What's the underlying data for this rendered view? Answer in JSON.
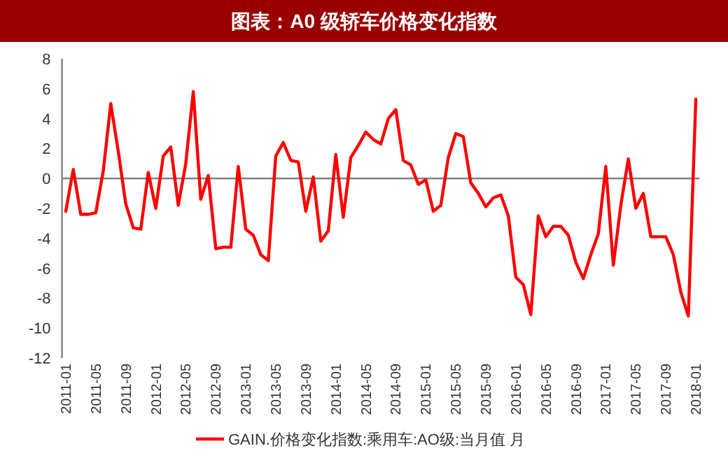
{
  "chart_data": {
    "type": "line",
    "title": "图表：A0 级轿车价格变化指数",
    "categories": [
      "2011-01",
      null,
      null,
      null,
      "2011-05",
      null,
      null,
      null,
      "2011-09",
      null,
      null,
      null,
      "2012-01",
      null,
      null,
      null,
      "2012-05",
      null,
      null,
      null,
      "2012-09",
      null,
      null,
      null,
      "2013-01",
      null,
      null,
      null,
      "2013-05",
      null,
      null,
      null,
      "2013-09",
      null,
      null,
      null,
      "2014-01",
      null,
      null,
      null,
      "2014-05",
      null,
      null,
      null,
      "2014-09",
      null,
      null,
      null,
      "2015-01",
      null,
      null,
      null,
      "2015-05",
      null,
      null,
      null,
      "2015-09",
      null,
      null,
      null,
      "2016-01",
      null,
      null,
      null,
      "2016-05",
      null,
      null,
      null,
      "2016-09",
      null,
      null,
      null,
      "2017-01",
      null,
      null,
      null,
      "2017-05",
      null,
      null,
      null,
      "2017-09",
      null,
      null,
      null,
      "2018-01"
    ],
    "series": [
      {
        "name": "GAIN.价格变化指数:乘用车:AO级:当月值 月",
        "color": "#ff0000",
        "values": [
          -2.2,
          0.6,
          -2.4,
          -2.4,
          -2.3,
          0.5,
          5.0,
          1.8,
          -1.7,
          -3.3,
          -3.4,
          0.4,
          -2.0,
          1.5,
          2.1,
          -1.8,
          1.0,
          5.8,
          -1.4,
          0.2,
          -4.7,
          -4.6,
          -4.6,
          0.8,
          -3.4,
          -3.8,
          -5.1,
          -5.5,
          1.5,
          2.4,
          1.2,
          1.1,
          -2.2,
          0.1,
          -4.2,
          -3.5,
          1.6,
          -2.6,
          1.4,
          2.2,
          3.1,
          2.6,
          2.3,
          4.0,
          4.6,
          1.2,
          0.9,
          -0.4,
          -0.1,
          -2.2,
          -1.8,
          1.4,
          3.0,
          2.8,
          -0.3,
          -1.0,
          -1.9,
          -1.3,
          -1.1,
          -2.5,
          -6.6,
          -7.1,
          -9.1,
          -2.5,
          -3.9,
          -3.2,
          -3.2,
          -3.8,
          -5.6,
          -6.7,
          -5.1,
          -3.7,
          0.8,
          -5.8,
          -1.8,
          1.3,
          -2.0,
          -1.0,
          -3.9,
          -3.9,
          -3.9,
          -5.1,
          -7.6,
          -9.2,
          5.3
        ]
      }
    ],
    "ylim": [
      -12,
      8
    ],
    "yticks": [
      -12,
      -10,
      -8,
      -6,
      -4,
      -2,
      0,
      2,
      4,
      6,
      8
    ],
    "legend": "bottom",
    "marker": "none",
    "line_style": "solid"
  }
}
